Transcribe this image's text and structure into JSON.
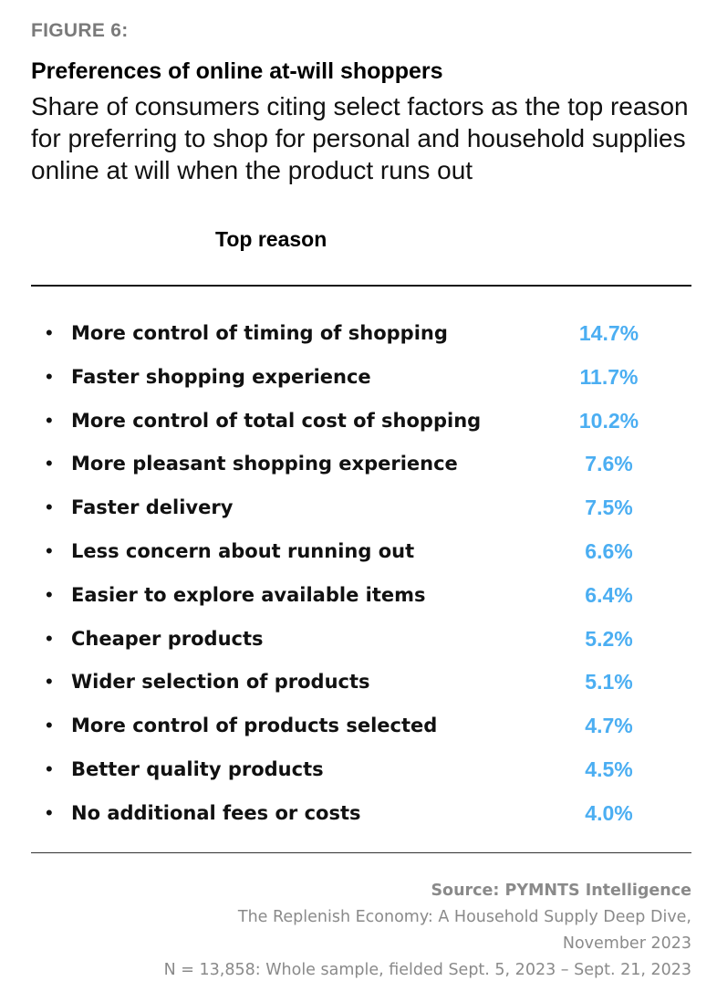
{
  "figure_label": "FIGURE 6:",
  "chart_data": {
    "type": "table",
    "title": "Preferences of online at-will shoppers",
    "subtitle": "Share of consumers citing select factors as the top reason for preferring to shop for personal and household supplies online at will when the product runs out",
    "column_header": "Top reason",
    "value_color": "#4baef2",
    "categories": [
      "More control of timing of shopping",
      "Faster shopping experience",
      "More control of total cost of shopping",
      "More pleasant shopping experience",
      "Faster delivery",
      "Less concern about running out",
      "Easier to explore available items",
      "Cheaper products",
      "Wider selection of products",
      "More control of products selected",
      "Better quality products",
      "No additional fees or costs"
    ],
    "values": [
      14.7,
      11.7,
      10.2,
      7.6,
      7.5,
      6.6,
      6.4,
      5.2,
      5.1,
      4.7,
      4.5,
      4.0
    ],
    "value_labels": [
      "14.7%",
      "11.7%",
      "10.2%",
      "7.6%",
      "7.5%",
      "6.6%",
      "6.4%",
      "5.2%",
      "5.1%",
      "4.7%",
      "4.5%",
      "4.0%"
    ]
  },
  "source": {
    "title": "Source: PYMNTS Intelligence",
    "line1": "The Replenish Economy: A Household Supply Deep Dive,",
    "line2": "November 2023",
    "line3": "N = 13,858: Whole sample, fielded Sept. 5, 2023 – Sept. 21, 2023"
  }
}
